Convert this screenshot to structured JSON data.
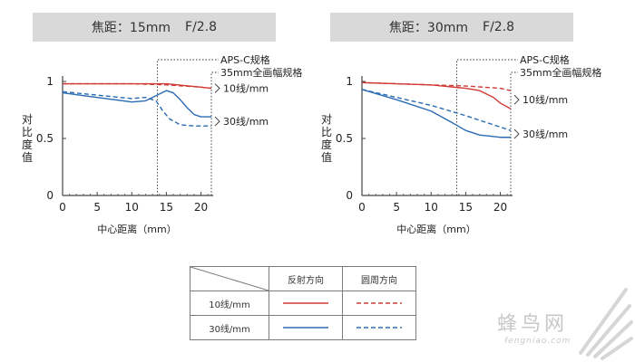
{
  "chart_data": [
    {
      "type": "line",
      "title_name": "焦距：15mm",
      "title_aperture": "F/2.8",
      "xlabel": "中心距离（mm）",
      "ylabel": "对比度值",
      "xlim": [
        0,
        21.5
      ],
      "ylim": [
        0,
        1
      ],
      "xticks": [
        "0",
        "5",
        "10",
        "15",
        "20"
      ],
      "yticks": [
        "0",
        "0.5",
        "1"
      ],
      "annotations": {
        "apsc": "APS-C规格",
        "ff": "35mm全画幅规格",
        "apsc_x": 13.7,
        "ff_x": 21.5
      },
      "series": [
        {
          "name": "10线/mm 反射方向",
          "x": [
            0,
            5,
            10,
            15,
            20,
            21.5
          ],
          "values": [
            0.98,
            0.98,
            0.98,
            0.98,
            0.95,
            0.94
          ]
        },
        {
          "name": "10线/mm 圆周方向",
          "x": [
            0,
            5,
            10,
            15,
            20,
            21.5
          ],
          "values": [
            0.98,
            0.98,
            0.98,
            0.97,
            0.95,
            0.94
          ]
        },
        {
          "name": "30线/mm 反射方向",
          "x": [
            0,
            5,
            10,
            12,
            14,
            15,
            16,
            17,
            18,
            19,
            20,
            21.5
          ],
          "values": [
            0.9,
            0.86,
            0.82,
            0.83,
            0.89,
            0.92,
            0.9,
            0.84,
            0.77,
            0.71,
            0.69,
            0.69
          ]
        },
        {
          "name": "30线/mm 圆周方向",
          "x": [
            0,
            5,
            10,
            12,
            13.5,
            14.5,
            15.5,
            17,
            19,
            20,
            21.5
          ],
          "values": [
            0.91,
            0.88,
            0.85,
            0.86,
            0.83,
            0.74,
            0.67,
            0.62,
            0.61,
            0.61,
            0.61
          ]
        }
      ],
      "line_labels": [
        "10线/mm",
        "30线/mm"
      ]
    },
    {
      "type": "line",
      "title_name": "焦距：30mm",
      "title_aperture": "F/2.8",
      "xlabel": "中心距离（mm）",
      "ylabel": "对比度值",
      "xlim": [
        0,
        21.5
      ],
      "ylim": [
        0,
        1
      ],
      "xticks": [
        "0",
        "5",
        "10",
        "15",
        "20"
      ],
      "yticks": [
        "0",
        "0.5",
        "1"
      ],
      "annotations": {
        "apsc": "APS-C规格",
        "ff": "35mm全画幅规格",
        "apsc_x": 13.7,
        "ff_x": 21.5
      },
      "series": [
        {
          "name": "10线/mm 反射方向",
          "x": [
            0,
            5,
            10,
            15,
            17,
            19,
            20,
            21.5
          ],
          "values": [
            0.99,
            0.98,
            0.97,
            0.94,
            0.92,
            0.86,
            0.81,
            0.76
          ]
        },
        {
          "name": "10线/mm 圆周方向",
          "x": [
            0,
            5,
            10,
            15,
            20,
            21.5
          ],
          "values": [
            0.99,
            0.98,
            0.97,
            0.96,
            0.94,
            0.92
          ]
        },
        {
          "name": "30线/mm 反射方向",
          "x": [
            0,
            5,
            10,
            13,
            15,
            17,
            20,
            21.5
          ],
          "values": [
            0.93,
            0.84,
            0.74,
            0.64,
            0.57,
            0.53,
            0.51,
            0.51
          ]
        },
        {
          "name": "30线/mm 圆周方向",
          "x": [
            0,
            5,
            10,
            15,
            20,
            21.5
          ],
          "values": [
            0.93,
            0.86,
            0.79,
            0.7,
            0.6,
            0.57
          ]
        }
      ],
      "line_labels": [
        "10线/mm",
        "30线/mm"
      ]
    }
  ],
  "legend_table": {
    "col_headers": [
      "反射方向",
      "圆周方向"
    ],
    "rows": [
      "10线/mm",
      "30线/mm"
    ]
  },
  "colors": {
    "red": "#d03a35",
    "blue": "#2a6bb3"
  },
  "watermark": {
    "cn": "蜂鸟网",
    "en": "fengniao.com"
  }
}
